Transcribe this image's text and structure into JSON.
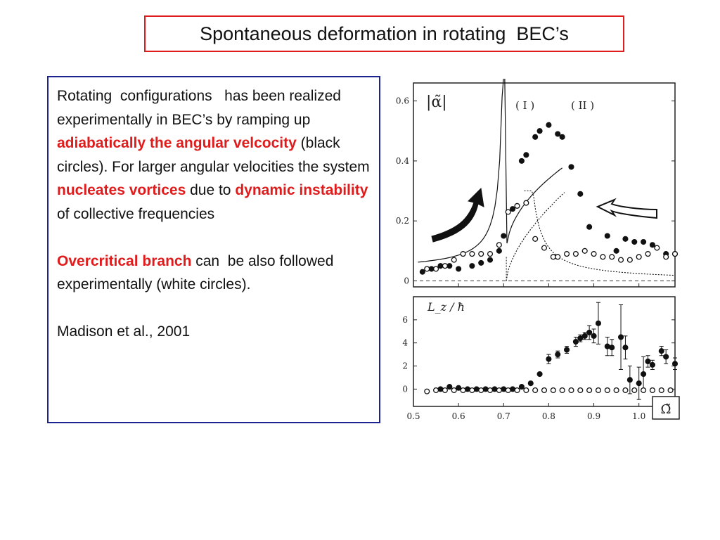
{
  "slide": {
    "title": "Spontaneous deformation in rotating  BEC’s",
    "para1": {
      "t1": "Rotating  configurations   has been realized experimentally in BEC’s by ramping up ",
      "h1": "adiabatically the angular velcocity",
      "t2": " (black circles). For larger angular velocities the system ",
      "h2": "nucleates vortices",
      "t3": " due to ",
      "h3": "dynamic instability",
      "t4": " of collective frequencies"
    },
    "para2": {
      "h1": "Overcritical branch",
      "t1": " can  be also followed experimentally (white circles)."
    },
    "citation": "Madison et al., 2001"
  },
  "colors": {
    "title_border": "#e01b1b",
    "text_border": "#1c2290",
    "highlight": "#e01b1b"
  },
  "icons": [
    "up-curved-arrow-icon",
    "left-hollow-arrow-icon"
  ],
  "chart_data": [
    {
      "type": "scatter",
      "title": "",
      "ylabel": "|α̃|",
      "xlabel": "",
      "xlim": [
        0.5,
        1.08
      ],
      "ylim": [
        -0.02,
        0.66
      ],
      "yticks": [
        "0",
        "0.2",
        "0.4",
        "0.6"
      ],
      "annotations": [
        "( I )",
        "( II )"
      ],
      "series": [
        {
          "marker": "filled",
          "points": [
            [
              0.52,
              0.03
            ],
            [
              0.54,
              0.04
            ],
            [
              0.56,
              0.05
            ],
            [
              0.58,
              0.05
            ],
            [
              0.6,
              0.04
            ],
            [
              0.63,
              0.05
            ],
            [
              0.65,
              0.06
            ],
            [
              0.67,
              0.07
            ],
            [
              0.69,
              0.1
            ],
            [
              0.7,
              0.15
            ],
            [
              0.72,
              0.24
            ],
            [
              0.74,
              0.4
            ],
            [
              0.75,
              0.42
            ],
            [
              0.77,
              0.48
            ],
            [
              0.78,
              0.5
            ],
            [
              0.8,
              0.52
            ],
            [
              0.82,
              0.49
            ],
            [
              0.83,
              0.48
            ],
            [
              0.85,
              0.38
            ],
            [
              0.87,
              0.29
            ],
            [
              0.89,
              0.18
            ],
            [
              0.93,
              0.15
            ],
            [
              0.95,
              0.1
            ],
            [
              0.97,
              0.14
            ],
            [
              0.99,
              0.13
            ],
            [
              1.01,
              0.13
            ],
            [
              1.03,
              0.12
            ],
            [
              1.06,
              0.09
            ],
            [
              1.08,
              0.09
            ]
          ]
        },
        {
          "marker": "open",
          "points": [
            [
              0.53,
              0.04
            ],
            [
              0.55,
              0.04
            ],
            [
              0.57,
              0.05
            ],
            [
              0.59,
              0.07
            ],
            [
              0.61,
              0.09
            ],
            [
              0.63,
              0.09
            ],
            [
              0.65,
              0.09
            ],
            [
              0.67,
              0.09
            ],
            [
              0.69,
              0.12
            ],
            [
              0.71,
              0.23
            ],
            [
              0.73,
              0.25
            ],
            [
              0.75,
              0.26
            ],
            [
              0.77,
              0.14
            ],
            [
              0.79,
              0.11
            ],
            [
              0.81,
              0.08
            ],
            [
              0.82,
              0.08
            ],
            [
              0.84,
              0.09
            ],
            [
              0.86,
              0.09
            ],
            [
              0.88,
              0.1
            ],
            [
              0.9,
              0.09
            ],
            [
              0.92,
              0.08
            ],
            [
              0.94,
              0.08
            ],
            [
              0.96,
              0.07
            ],
            [
              0.98,
              0.07
            ],
            [
              1.0,
              0.08
            ],
            [
              1.02,
              0.09
            ],
            [
              1.04,
              0.11
            ],
            [
              1.06,
              0.08
            ],
            [
              1.08,
              0.09
            ]
          ]
        }
      ]
    },
    {
      "type": "scatter",
      "ylabel": "L_z / ħ",
      "xlabel": "Ω̃",
      "xlim": [
        0.5,
        1.08
      ],
      "ylim": [
        -1.5,
        8
      ],
      "xticks": [
        "0.5",
        "0.6",
        "0.7",
        "0.8",
        "0.9",
        "1.0"
      ],
      "yticks": [
        "0",
        "2",
        "4",
        "6"
      ],
      "series": [
        {
          "marker": "filled",
          "points": [
            [
              0.56,
              0.0
            ],
            [
              0.58,
              0.2
            ],
            [
              0.6,
              0.1
            ],
            [
              0.62,
              0.0
            ],
            [
              0.64,
              0.0
            ],
            [
              0.66,
              0.0
            ],
            [
              0.68,
              0.0
            ],
            [
              0.7,
              0.0
            ],
            [
              0.72,
              0.0
            ],
            [
              0.74,
              0.2
            ],
            [
              0.76,
              0.5
            ],
            [
              0.78,
              1.3
            ],
            [
              0.8,
              2.6
            ],
            [
              0.82,
              3.0
            ],
            [
              0.84,
              3.4
            ],
            [
              0.86,
              4.1
            ],
            [
              0.87,
              4.4
            ],
            [
              0.88,
              4.6
            ],
            [
              0.89,
              4.9
            ],
            [
              0.9,
              4.6
            ],
            [
              0.91,
              5.7
            ],
            [
              0.93,
              3.7
            ],
            [
              0.94,
              3.6
            ],
            [
              0.96,
              4.5
            ],
            [
              0.97,
              3.6
            ],
            [
              0.98,
              0.8
            ],
            [
              1.0,
              0.5
            ],
            [
              1.01,
              1.3
            ],
            [
              1.02,
              2.4
            ],
            [
              1.03,
              2.1
            ],
            [
              1.05,
              3.3
            ],
            [
              1.06,
              2.8
            ],
            [
              1.08,
              2.2
            ]
          ],
          "yerr": [
            0,
            0,
            0,
            0,
            0,
            0,
            0,
            0,
            0,
            0,
            0,
            0,
            0.4,
            0.3,
            0.3,
            0.4,
            0.3,
            0.3,
            0.6,
            0.6,
            1.8,
            0.8,
            0.7,
            2.8,
            1.0,
            1.2,
            1.4,
            1.5,
            0.5,
            0.4,
            0.4,
            0.6,
            0.5
          ]
        },
        {
          "marker": "open",
          "points": [
            [
              0.53,
              -0.2
            ],
            [
              0.55,
              -0.1
            ],
            [
              0.57,
              -0.1
            ],
            [
              0.59,
              -0.1
            ],
            [
              0.61,
              -0.1
            ],
            [
              0.63,
              -0.1
            ],
            [
              0.65,
              -0.1
            ],
            [
              0.67,
              -0.1
            ],
            [
              0.69,
              -0.1
            ],
            [
              0.71,
              -0.1
            ],
            [
              0.73,
              -0.1
            ],
            [
              0.75,
              -0.1
            ],
            [
              0.77,
              -0.1
            ],
            [
              0.79,
              -0.1
            ],
            [
              0.81,
              -0.1
            ],
            [
              0.83,
              -0.1
            ],
            [
              0.85,
              -0.1
            ],
            [
              0.87,
              -0.1
            ],
            [
              0.89,
              -0.1
            ],
            [
              0.91,
              -0.1
            ],
            [
              0.93,
              -0.1
            ],
            [
              0.95,
              -0.1
            ],
            [
              0.97,
              -0.1
            ],
            [
              0.99,
              -0.1
            ],
            [
              1.01,
              -0.1
            ],
            [
              1.03,
              -0.1
            ],
            [
              1.05,
              -0.1
            ],
            [
              1.07,
              -0.1
            ]
          ]
        }
      ]
    }
  ]
}
